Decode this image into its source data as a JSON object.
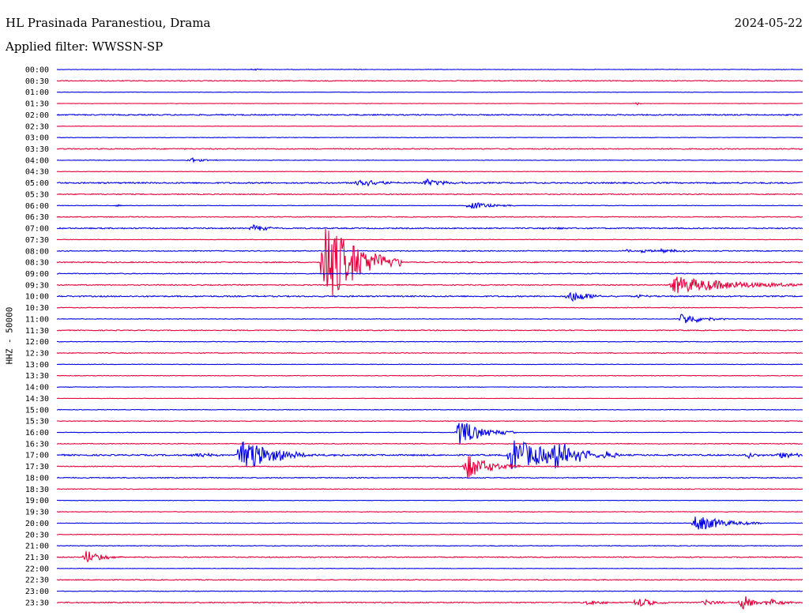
{
  "header": {
    "station": "HL Prasinada Paranestiou, Drama",
    "date": "2024-05-22",
    "filter": "Applied filter: WWSSN-SP"
  },
  "chart_data": {
    "type": "line",
    "title": "HL Prasinada Paranestiou, Drama",
    "ylabel": "HHZ - 50000",
    "colors": {
      "even_rows": "#0000e6",
      "odd_rows": "#e6003c"
    },
    "rows": [
      "00:00",
      "00:30",
      "01:00",
      "01:30",
      "02:00",
      "02:30",
      "03:00",
      "03:30",
      "04:00",
      "04:30",
      "05:00",
      "05:30",
      "06:00",
      "06:30",
      "07:00",
      "07:30",
      "08:00",
      "08:30",
      "09:00",
      "09:30",
      "10:00",
      "10:30",
      "11:00",
      "11:30",
      "12:00",
      "12:30",
      "13:00",
      "13:30",
      "14:00",
      "14:30",
      "15:00",
      "15:30",
      "16:00",
      "16:30",
      "17:00",
      "17:30",
      "18:00",
      "18:30",
      "19:00",
      "19:30",
      "20:00",
      "20:30",
      "21:00",
      "21:30",
      "22:00",
      "22:30",
      "23:00",
      "23:30"
    ],
    "noise": [
      0.5,
      0.9,
      0.3,
      0.4,
      1.2,
      0.3,
      0.5,
      1.0,
      0.5,
      0.4,
      1.4,
      1.0,
      0.5,
      0.8,
      1.2,
      0.5,
      0.9,
      1.1,
      0.8,
      1.0,
      1.3,
      0.7,
      0.6,
      0.9,
      0.6,
      0.8,
      0.5,
      0.6,
      0.5,
      0.4,
      0.6,
      0.7,
      0.5,
      0.8,
      1.5,
      0.8,
      1.0,
      0.7,
      0.4,
      0.6,
      0.5,
      0.6,
      0.7,
      1.0,
      0.4,
      0.9,
      0.6,
      1.1
    ],
    "events": [
      {
        "row": 0,
        "x": 320,
        "amp": 2,
        "dur": 6
      },
      {
        "row": 3,
        "x": 806,
        "amp": 4,
        "dur": 3
      },
      {
        "row": 8,
        "x": 238,
        "amp": 4,
        "dur": 15
      },
      {
        "row": 10,
        "x": 450,
        "amp": 9,
        "dur": 22
      },
      {
        "row": 10,
        "x": 536,
        "amp": 6,
        "dur": 22
      },
      {
        "row": 12,
        "x": 148,
        "amp": 3,
        "dur": 4
      },
      {
        "row": 12,
        "x": 592,
        "amp": 6,
        "dur": 24
      },
      {
        "row": 14,
        "x": 318,
        "amp": 5,
        "dur": 18
      },
      {
        "row": 14,
        "x": 690,
        "amp": 3,
        "dur": 14
      },
      {
        "row": 16,
        "x": 790,
        "amp": 3,
        "dur": 10
      },
      {
        "row": 16,
        "x": 810,
        "amp": 4,
        "dur": 12
      },
      {
        "row": 16,
        "x": 835,
        "amp": 3,
        "dur": 25
      },
      {
        "row": 17,
        "x": 408,
        "amp": 60,
        "dur": 40
      },
      {
        "row": 19,
        "x": 850,
        "amp": 12,
        "dur": 75
      },
      {
        "row": 20,
        "x": 718,
        "amp": 9,
        "dur": 25
      },
      {
        "row": 20,
        "x": 805,
        "amp": 3,
        "dur": 12
      },
      {
        "row": 22,
        "x": 860,
        "amp": 9,
        "dur": 25
      },
      {
        "row": 32,
        "x": 578,
        "amp": 18,
        "dur": 30
      },
      {
        "row": 34,
        "x": 245,
        "amp": 5,
        "dur": 14
      },
      {
        "row": 34,
        "x": 302,
        "amp": 30,
        "dur": 30
      },
      {
        "row": 34,
        "x": 340,
        "amp": 4,
        "dur": 50
      },
      {
        "row": 34,
        "x": 645,
        "amp": 22,
        "dur": 55
      },
      {
        "row": 34,
        "x": 700,
        "amp": 14,
        "dur": 35
      },
      {
        "row": 34,
        "x": 945,
        "amp": 6,
        "dur": 10
      },
      {
        "row": 34,
        "x": 985,
        "amp": 5,
        "dur": 20
      },
      {
        "row": 35,
        "x": 588,
        "amp": 18,
        "dur": 28
      },
      {
        "row": 40,
        "x": 878,
        "amp": 12,
        "dur": 35
      },
      {
        "row": 43,
        "x": 106,
        "amp": 10,
        "dur": 20
      },
      {
        "row": 47,
        "x": 740,
        "amp": 4,
        "dur": 18
      },
      {
        "row": 47,
        "x": 805,
        "amp": 8,
        "dur": 18
      },
      {
        "row": 47,
        "x": 890,
        "amp": 4,
        "dur": 18
      },
      {
        "row": 47,
        "x": 937,
        "amp": 12,
        "dur": 15
      },
      {
        "row": 47,
        "x": 972,
        "amp": 6,
        "dur": 15
      }
    ]
  }
}
